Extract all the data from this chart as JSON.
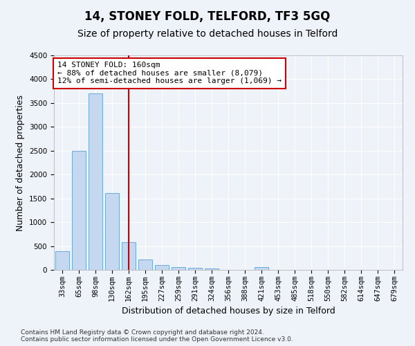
{
  "title": "14, STONEY FOLD, TELFORD, TF3 5GQ",
  "subtitle": "Size of property relative to detached houses in Telford",
  "xlabel": "Distribution of detached houses by size in Telford",
  "ylabel": "Number of detached properties",
  "footer_line1": "Contains HM Land Registry data © Crown copyright and database right 2024.",
  "footer_line2": "Contains public sector information licensed under the Open Government Licence v3.0.",
  "categories": [
    "33sqm",
    "65sqm",
    "98sqm",
    "130sqm",
    "162sqm",
    "195sqm",
    "227sqm",
    "259sqm",
    "291sqm",
    "324sqm",
    "356sqm",
    "388sqm",
    "421sqm",
    "453sqm",
    "485sqm",
    "518sqm",
    "550sqm",
    "582sqm",
    "614sqm",
    "647sqm",
    "679sqm"
  ],
  "values": [
    390,
    2500,
    3700,
    1610,
    580,
    220,
    105,
    60,
    45,
    35,
    0,
    0,
    55,
    0,
    0,
    0,
    0,
    0,
    0,
    0,
    0
  ],
  "bar_color": "#c5d8f0",
  "bar_edge_color": "#5a9fd4",
  "ylim": [
    0,
    4500
  ],
  "yticks": [
    0,
    500,
    1000,
    1500,
    2000,
    2500,
    3000,
    3500,
    4000,
    4500
  ],
  "vline_x_index": 4,
  "vline_color": "#cc0000",
  "annotation_line1": "14 STONEY FOLD: 160sqm",
  "annotation_line2": "← 88% of detached houses are smaller (8,079)",
  "annotation_line3": "12% of semi-detached houses are larger (1,069) →",
  "annotation_box_color": "#ffffff",
  "annotation_box_edge": "#cc0000",
  "bg_color": "#eef2f9",
  "grid_color": "#ffffff",
  "title_fontsize": 12,
  "subtitle_fontsize": 10,
  "axis_label_fontsize": 9,
  "tick_fontsize": 7.5,
  "annotation_fontsize": 8,
  "footer_fontsize": 6.5
}
